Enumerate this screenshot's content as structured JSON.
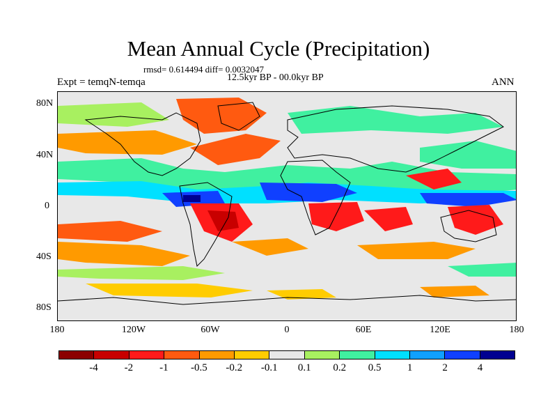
{
  "title": "Mean Annual Cycle (Precipitation)",
  "stats_line": "rmsd= 0.614494  diff= 0.0032047",
  "period": "12.5kyr BP - 00.0kyr BP",
  "experiment": "Expt = temqN-temqa",
  "season": "ANN",
  "lat_labels": [
    "80N",
    "40N",
    "0",
    "40S",
    "80S"
  ],
  "lon_labels": [
    "180",
    "120W",
    "60W",
    "0",
    "60E",
    "120E",
    "180"
  ],
  "colorbar": {
    "colors": [
      "#8b0000",
      "#c80000",
      "#ff1a1a",
      "#ff5a10",
      "#ff9a00",
      "#ffcc00",
      "#e8e8e8",
      "#a8f060",
      "#40f0a0",
      "#00e0ff",
      "#10a0ff",
      "#1040ff",
      "#000090"
    ],
    "labels": [
      "-4",
      "-2",
      "-1",
      "-0.5",
      "-0.2",
      "-0.1",
      "0.1",
      "0.2",
      "0.5",
      "1",
      "2",
      "4"
    ]
  },
  "field_colors": {
    "blue": "#1040ff",
    "cyan": "#00e0ff",
    "teal": "#40f0a0",
    "green": "#a8f060",
    "yellow": "#ffcc00",
    "orange": "#ff9a00",
    "red": "#ff1a1a",
    "darkred": "#c80000",
    "navy": "#000090"
  }
}
